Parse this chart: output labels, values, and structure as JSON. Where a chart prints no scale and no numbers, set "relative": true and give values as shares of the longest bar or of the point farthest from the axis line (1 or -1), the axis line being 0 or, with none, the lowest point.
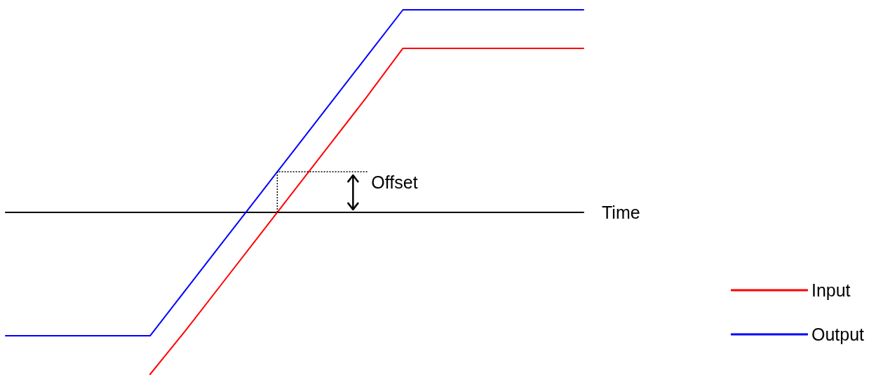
{
  "chart_data": {
    "type": "line",
    "relative": true,
    "xlabel": "Time",
    "annotations": [
      "Offset"
    ],
    "categories": [
      null,
      null,
      null,
      null,
      null,
      null,
      null,
      null,
      null,
      null,
      null,
      null,
      null,
      null,
      null,
      null,
      null
    ],
    "series": [
      {
        "name": "Input",
        "color": "#ff0000",
        "values": [
          null,
          null,
          null,
          null,
          -0.8,
          -0.58,
          -0.35,
          -0.12,
          0.11,
          0.34,
          0.57,
          0.81,
          0.81,
          0.81,
          0.81,
          0.81,
          0.81
        ]
      },
      {
        "name": "Output",
        "color": "#0000ff",
        "values": [
          -0.61,
          -0.61,
          -0.61,
          -0.61,
          -0.61,
          -0.38,
          -0.15,
          0.08,
          0.31,
          0.54,
          0.77,
          1,
          1,
          1,
          1,
          1,
          1
        ]
      }
    ],
    "legend": "bottom right",
    "grid": false,
    "tick_labels": false,
    "marker": "none",
    "line_style": "solid"
  }
}
